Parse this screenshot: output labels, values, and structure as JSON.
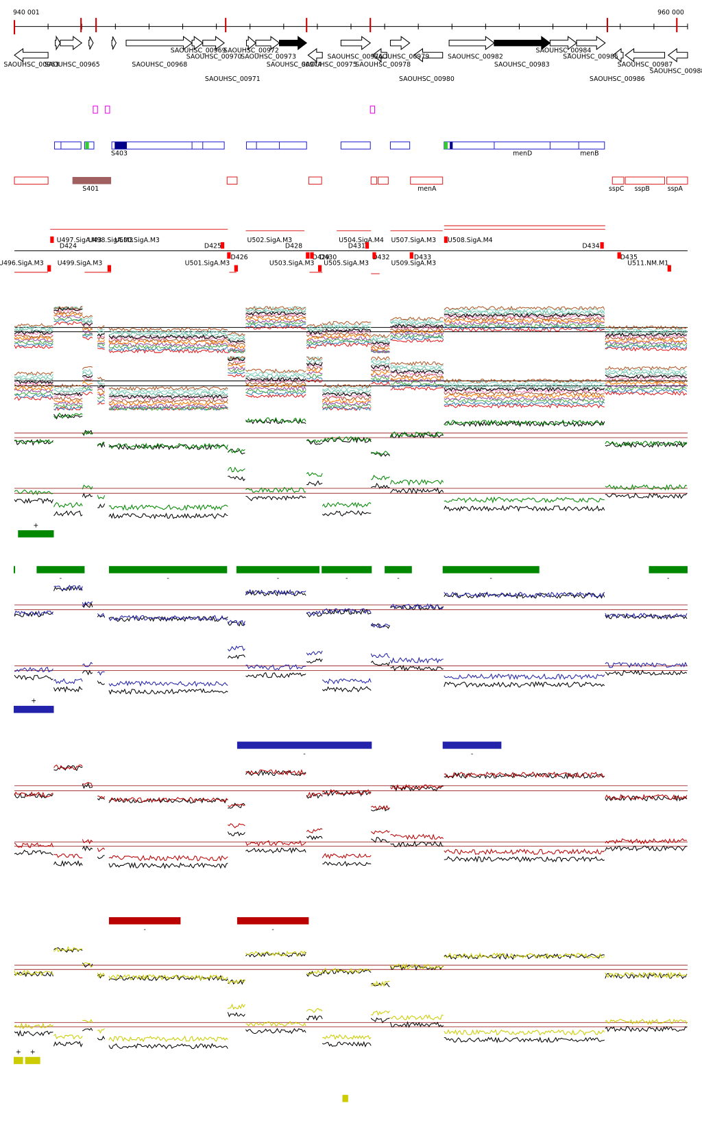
{
  "header": {
    "start": "940 001",
    "end": "960 000"
  },
  "genes": [
    "SAOUHSC_00963",
    "SAOUHSC_00965",
    "SAOUHSC_00968",
    "SAOUHSC_00969",
    "SAOUHSC_00970",
    "SAOUHSC_00971",
    "SAOUHSC_00972",
    "SAOUHSC_00973",
    "SAOUHSC_00974",
    "SAOUHSC_00975",
    "SAOUHSC_00976",
    "SAOUHSC_00978",
    "SAOUHSC_00979",
    "SAOUHSC_00980",
    "SAOUHSC_00982",
    "SAOUHSC_00983",
    "SAOUHSC_00984",
    "SAOUHSC_00985",
    "SAOUHSC_00986",
    "SAOUHSC_00987",
    "SAOUHSC_00988"
  ],
  "features": [
    "S403",
    "menD",
    "menB",
    "S401",
    "menA",
    "sspC",
    "sspB",
    "sspA"
  ],
  "regulators": [
    "U497.SigA.M3",
    "U498.SigA.M3",
    "U500.SigA.M3",
    "U502.SigA.M3",
    "U504.SigA.M4",
    "U507.SigA.M3",
    "U508.SigA.M4",
    "D424",
    "D425",
    "D428",
    "D431",
    "D434",
    "U496.SigA.M3",
    "U499.SigA.M3",
    "U501.SigA.M3",
    "D426",
    "U503.SigA.M3",
    "D429",
    "D430",
    "U505.SigA.M3",
    "D432",
    "U509.SigA.M3",
    "D433",
    "D435",
    "U511.NM.M1"
  ],
  "strands": {
    "plus": "+",
    "minus": "-"
  }
}
